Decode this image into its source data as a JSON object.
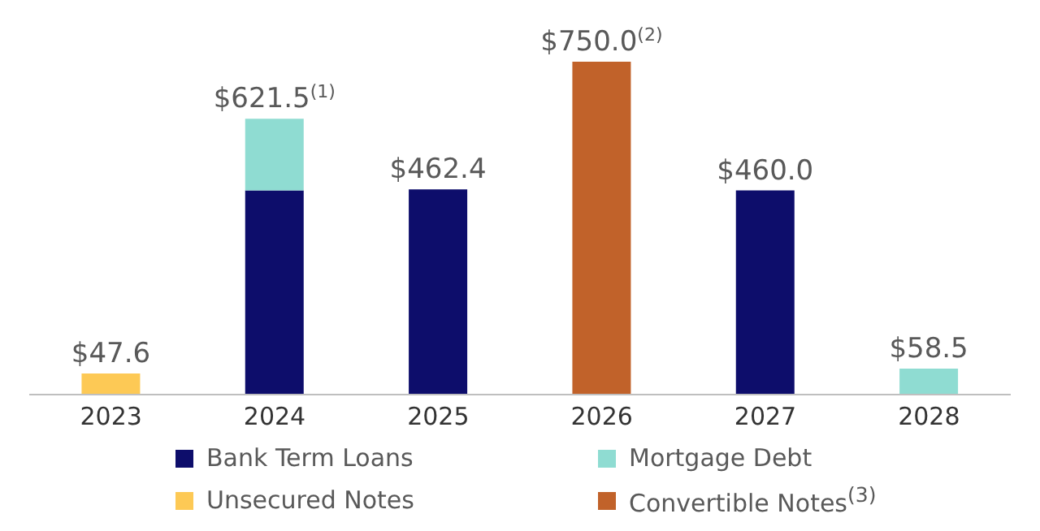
{
  "chart_data": {
    "type": "bar",
    "stacked": true,
    "categories": [
      "2023",
      "2024",
      "2025",
      "2026",
      "2027",
      "2028"
    ],
    "series": [
      {
        "name": "Bank Term Loans",
        "color": "#0d0d6b",
        "values": [
          null,
          460,
          462.4,
          null,
          460.0,
          null
        ],
        "value_labels": [
          null,
          null,
          "$462.4",
          null,
          "$460.0",
          null
        ]
      },
      {
        "name": "Mortgage Debt",
        "color": "#8fdcd2",
        "values": [
          null,
          161.5,
          null,
          null,
          null,
          58.5
        ],
        "value_labels": [
          null,
          null,
          null,
          null,
          null,
          "$58.5"
        ]
      },
      {
        "name": "Unsecured Notes",
        "color": "#fdc955",
        "values": [
          47.6,
          null,
          null,
          null,
          null,
          null
        ],
        "value_labels": [
          "$47.6",
          null,
          null,
          null,
          null,
          null
        ]
      },
      {
        "name": "Convertible Notes$^{(3)}$",
        "color": "#c1622a",
        "values": [
          null,
          null,
          null,
          750.0,
          null,
          null
        ],
        "value_labels": [
          null,
          null,
          null,
          "$750.0$^{(2)}$",
          null,
          null
        ]
      }
    ],
    "totals": [
      null,
      "$621.5$^{(1)}$",
      null,
      null,
      null,
      null
    ],
    "grid": false,
    "legend": "bottom"
  }
}
